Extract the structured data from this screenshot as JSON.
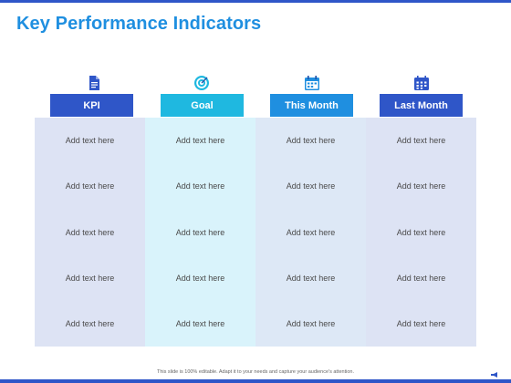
{
  "slide": {
    "title": "Key Performance Indicators",
    "footer": "This slide is 100% editable. Adapt it to your needs and capture your audience's attention."
  },
  "columns": [
    {
      "label": "KPI",
      "icon": "document-icon",
      "header_color": "#2f56c8",
      "bg_color": "#dde3f4"
    },
    {
      "label": "Goal",
      "icon": "target-icon",
      "header_color": "#1fb8e0",
      "bg_color": "#d9f3fb"
    },
    {
      "label": "This Month",
      "icon": "calendar-icon",
      "header_color": "#1f8fe0",
      "bg_color": "#dde8f6"
    },
    {
      "label": "Last Month",
      "icon": "calendar-grid-icon",
      "header_color": "#2f56c8",
      "bg_color": "#dde3f4"
    }
  ],
  "rows": [
    [
      "Add text here",
      "Add text here",
      "Add text here",
      "Add text here"
    ],
    [
      "Add text here",
      "Add text here",
      "Add text here",
      "Add text here"
    ],
    [
      "Add text here",
      "Add text here",
      "Add text here",
      "Add text here"
    ],
    [
      "Add text here",
      "Add text here",
      "Add text here",
      "Add text here"
    ],
    [
      "Add text here",
      "Add text here",
      "Add text here",
      "Add text here"
    ]
  ]
}
